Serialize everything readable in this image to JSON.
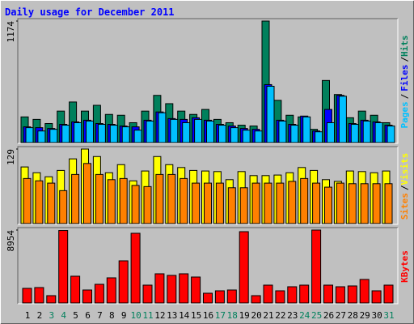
{
  "chart_data": [
    {
      "type": "bar",
      "title": "Daily usage for December 2011",
      "ylim": [
        0,
        1174
      ],
      "yticks": [
        1174
      ],
      "legend_separator": "/",
      "series": [
        {
          "name": "Hits",
          "color": "#00805c",
          "values": [
            248,
            224,
            184,
            304,
            392,
            304,
            360,
            272,
            264,
            192,
            304,
            456,
            376,
            304,
            272,
            320,
            224,
            192,
            168,
            160,
            1174,
            408,
            264,
            248,
            128,
            600,
            464,
            240,
            304,
            264,
            192
          ]
        },
        {
          "name": "Files",
          "color": "#0000ff",
          "values": [
            152,
            144,
            136,
            176,
            200,
            216,
            184,
            176,
            160,
            152,
            216,
            296,
            232,
            224,
            240,
            216,
            176,
            160,
            136,
            128,
            560,
            216,
            176,
            256,
            112,
            320,
            456,
            184,
            216,
            200,
            168
          ]
        },
        {
          "name": "Pages",
          "color": "#00c0ff",
          "values": [
            144,
            112,
            128,
            168,
            192,
            208,
            176,
            168,
            152,
            120,
            208,
            288,
            224,
            192,
            224,
            208,
            168,
            144,
            120,
            112,
            544,
            208,
            168,
            248,
            104,
            192,
            448,
            176,
            208,
            192,
            160
          ]
        }
      ]
    },
    {
      "type": "bar",
      "ylim": [
        0,
        129
      ],
      "yticks": [
        129
      ],
      "series": [
        {
          "name": "Visits",
          "color": "#ffff00",
          "values": [
            98,
            88,
            81,
            92,
            112,
            129,
            116,
            88,
            102,
            74,
            91,
            116,
            102,
            97,
            92,
            91,
            90,
            76,
            90,
            83,
            83,
            84,
            88,
            97,
            92,
            76,
            73,
            91,
            90,
            88,
            91
          ]
        },
        {
          "name": "Sites",
          "color": "#ff8000",
          "values": [
            78,
            74,
            70,
            57,
            85,
            104,
            85,
            76,
            78,
            66,
            64,
            85,
            85,
            78,
            70,
            70,
            70,
            62,
            62,
            70,
            70,
            70,
            73,
            78,
            70,
            63,
            70,
            69,
            69,
            69,
            69
          ]
        }
      ]
    },
    {
      "type": "bar",
      "ylim": [
        0,
        8954
      ],
      "yticks": [
        8954
      ],
      "categories": [
        "1",
        "2",
        "3",
        "4",
        "5",
        "6",
        "7",
        "8",
        "9",
        "10",
        "11",
        "12",
        "13",
        "14",
        "15",
        "16",
        "17",
        "18",
        "19",
        "20",
        "21",
        "22",
        "23",
        "24",
        "25",
        "26",
        "27",
        "28",
        "29",
        "30",
        "31"
      ],
      "category_colors": [
        "#000000",
        "#000000",
        "#00805c",
        "#00805c",
        "#000000",
        "#000000",
        "#000000",
        "#000000",
        "#000000",
        "#00805c",
        "#00805c",
        "#000000",
        "#000000",
        "#000000",
        "#000000",
        "#000000",
        "#00805c",
        "#00805c",
        "#000000",
        "#000000",
        "#000000",
        "#000000",
        "#000000",
        "#00805c",
        "#00805c",
        "#000000",
        "#000000",
        "#000000",
        "#000000",
        "#000000",
        "#00805c"
      ],
      "series": [
        {
          "name": "KBytes",
          "color": "#ff0000",
          "values": [
            1791,
            1891,
            896,
            8900,
            3284,
            1592,
            2289,
            3085,
            5174,
            8557,
            2189,
            3582,
            3383,
            3582,
            3184,
            1194,
            1493,
            1592,
            8756,
            896,
            2189,
            1493,
            1990,
            2189,
            8954,
            2189,
            1990,
            2090,
            2886,
            1493,
            2189
          ]
        }
      ]
    }
  ]
}
